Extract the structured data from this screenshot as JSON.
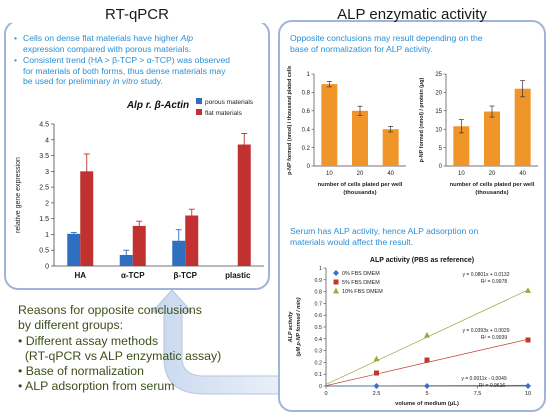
{
  "left_panel": {
    "title": "RT-qPCR",
    "bullets": [
      {
        "parts": [
          "Cells on dense flat materials have higher ",
          "Alp"
        ],
        "rest": "expression compared with porous materials."
      },
      {
        "line1": "Consistent trend (HA > β-TCP > α-TCP) was observed",
        "line2": "for materials of both forms, thus dense materials may",
        "line3a": "be used for preliminary ",
        "line3i": "in vitro",
        "line3b": " study."
      }
    ]
  },
  "right_panel": {
    "title": "ALP enzymatic activity",
    "intro": [
      "Opposite conclusions may result depending on the",
      "base of normalization for ALP activity."
    ],
    "serum_text": [
      "Serum has ALP activity, hence ALP adsorption on",
      "materials would affect the result."
    ]
  },
  "reasons": {
    "title": [
      "Reasons for opposite conclusions",
      "by different groups:"
    ],
    "items": [
      "• Different assay methods",
      "  (RT-qPCR vs ALP enzymatic assay)",
      "• Base of normalization",
      "• ALP adsorption from serum"
    ]
  },
  "colors": {
    "porous": "#2f6fc0",
    "flat": "#c0312f",
    "orange": "#f0952a",
    "blue_text": "#2a8fd6",
    "green_text": "#3d4f1a",
    "panel_border": "#9fb4d6"
  },
  "chart_data": [
    {
      "type": "bar",
      "title": "Alp r. β-Actin",
      "ylabel": "relative gene expression",
      "categories": [
        "HA",
        "α-TCP",
        "β-TCP",
        "plastic"
      ],
      "ylim": [
        0,
        4.5
      ],
      "yticks": [
        "0",
        "0.5",
        "1",
        "1.5",
        "2",
        "2.5",
        "3",
        "3.5",
        "4",
        "4.5"
      ],
      "legend": [
        "porous materials",
        "flat materials"
      ],
      "series": [
        {
          "name": "porous materials",
          "values": [
            1.02,
            0.35,
            0.8,
            null
          ],
          "errors": [
            0.04,
            0.15,
            0.35,
            null
          ]
        },
        {
          "name": "flat materials",
          "values": [
            3.0,
            1.27,
            1.6,
            3.85
          ],
          "errors": [
            0.55,
            0.15,
            0.2,
            0.35
          ]
        }
      ]
    },
    {
      "type": "bar",
      "ylabel": "p-NP formed (nmol) / thousand plated cells",
      "xlabel": [
        "number of cells plated per well",
        "(thousands)"
      ],
      "categories": [
        "10",
        "20",
        "40"
      ],
      "ylim": [
        0,
        1
      ],
      "yticks": [
        "0",
        "0.2",
        "0.4",
        "0.6",
        "0.8",
        "1"
      ],
      "values": [
        0.89,
        0.6,
        0.4
      ],
      "errors": [
        0.03,
        0.05,
        0.03
      ]
    },
    {
      "type": "bar",
      "ylabel": "p-NP formed (nmol) / protein (μg)",
      "xlabel": [
        "number of cells plated per well",
        "(thousands)"
      ],
      "categories": [
        "10",
        "20",
        "40"
      ],
      "ylim": [
        0,
        25
      ],
      "yticks": [
        "0",
        "5",
        "10",
        "15",
        "20",
        "25"
      ],
      "values": [
        10.8,
        14.8,
        21.0
      ],
      "errors": [
        1.8,
        1.5,
        2.2
      ]
    },
    {
      "type": "scatter",
      "title": "ALP activity (PBS as reference)",
      "ylabel": "ALP activity",
      "ylabel2": "(μM p-NP formed / min)",
      "xlabel": "volume of medium (μL)",
      "xlim": [
        0,
        10
      ],
      "ylim": [
        0,
        1
      ],
      "xticks": [
        "0",
        "2.5",
        "5",
        "7.5",
        "10"
      ],
      "yticks": [
        "0",
        "0.1",
        "0.2",
        "0.3",
        "0.4",
        "0.5",
        "0.6",
        "0.7",
        "0.8",
        "0.9",
        "1"
      ],
      "series": [
        {
          "name": "0% FBS DMEM",
          "color": "#3d6fc9",
          "marker": "diamond",
          "x": [
            2.5,
            5,
            10
          ],
          "y": [
            0.0,
            0.0,
            0.0
          ],
          "slope": 0.0011,
          "intercept": -0.0049,
          "eq": "y = 0.0011x - 0.0049",
          "r2": "R² = 0.9616"
        },
        {
          "name": "5% FBS DMEM",
          "color": "#c0392b",
          "marker": "square",
          "x": [
            2.5,
            5,
            10
          ],
          "y": [
            0.11,
            0.22,
            0.39
          ],
          "slope": 0.0393,
          "intercept": 0.0029,
          "eq": "y = 0.0393x + 0.0029",
          "r2": "R² = 0.9939"
        },
        {
          "name": "10% FBS DMEM",
          "color": "#9aaa3a",
          "marker": "triangle",
          "x": [
            2.5,
            5,
            10
          ],
          "y": [
            0.23,
            0.43,
            0.81
          ],
          "slope": 0.0801,
          "intercept": 0.0132,
          "eq": "y = 0.0801x + 0.0132",
          "r2": "R² = 0.9978"
        }
      ]
    }
  ]
}
